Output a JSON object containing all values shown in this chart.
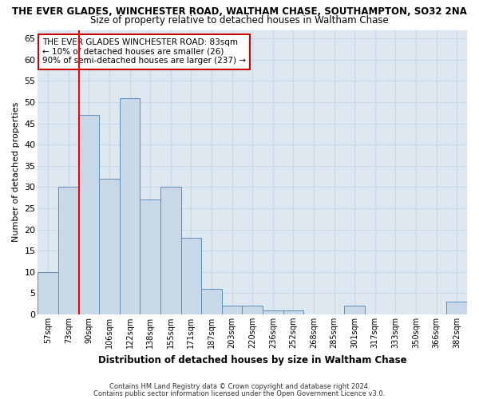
{
  "title": "THE EVER GLADES, WINCHESTER ROAD, WALTHAM CHASE, SOUTHAMPTON, SO32 2NA",
  "subtitle": "Size of property relative to detached houses in Waltham Chase",
  "xlabel": "Distribution of detached houses by size in Waltham Chase",
  "ylabel": "Number of detached properties",
  "footer1": "Contains HM Land Registry data © Crown copyright and database right 2024.",
  "footer2": "Contains public sector information licensed under the Open Government Licence v3.0.",
  "categories": [
    "57sqm",
    "73sqm",
    "90sqm",
    "106sqm",
    "122sqm",
    "138sqm",
    "155sqm",
    "171sqm",
    "187sqm",
    "203sqm",
    "220sqm",
    "236sqm",
    "252sqm",
    "268sqm",
    "285sqm",
    "301sqm",
    "317sqm",
    "333sqm",
    "350sqm",
    "366sqm",
    "382sqm"
  ],
  "values": [
    10,
    30,
    47,
    32,
    51,
    27,
    30,
    18,
    6,
    2,
    2,
    1,
    1,
    0,
    0,
    2,
    0,
    0,
    0,
    0,
    3
  ],
  "bar_color": "#c8d8e8",
  "bar_edge_color": "#5b8db8",
  "red_line_x": 1.5,
  "ylim": [
    0,
    67
  ],
  "yticks": [
    0,
    5,
    10,
    15,
    20,
    25,
    30,
    35,
    40,
    45,
    50,
    55,
    60,
    65
  ],
  "annotation_text": "THE EVER GLADES WINCHESTER ROAD: 83sqm\n← 10% of detached houses are smaller (26)\n90% of semi-detached houses are larger (237) →",
  "annotation_box_color": "#ffffff",
  "annotation_box_edge": "#cc0000",
  "grid_color": "#c8d8e8",
  "background_color": "#ffffff",
  "plot_bg_color": "#dde8f0"
}
